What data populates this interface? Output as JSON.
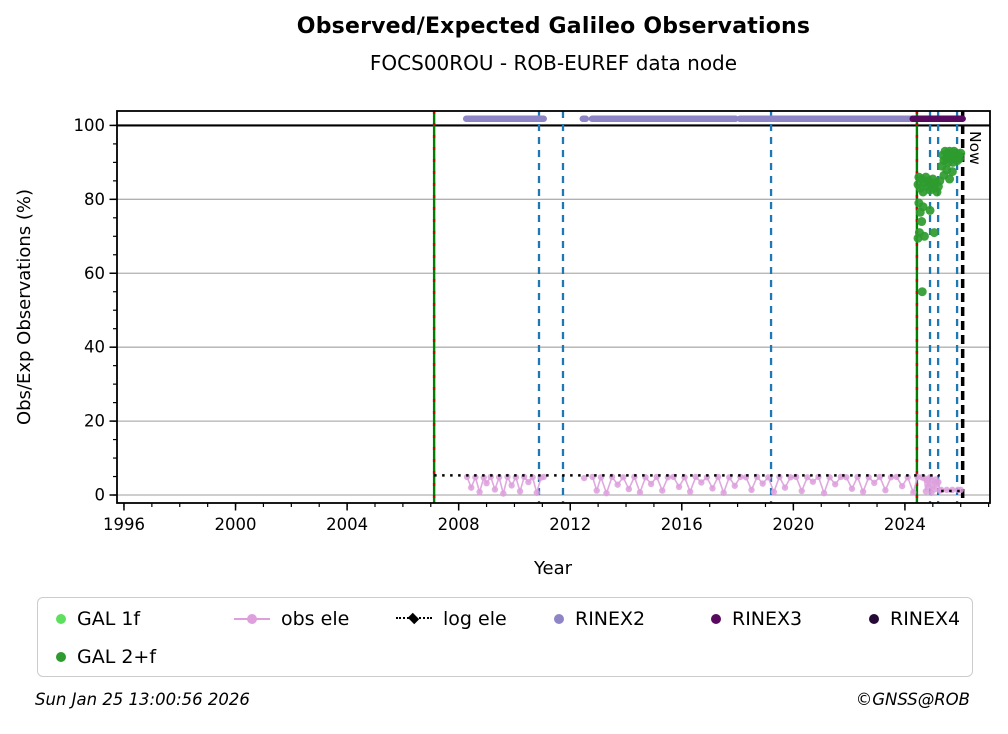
{
  "header": {
    "title": "Observed/Expected Galileo Observations",
    "subtitle": "FOCS00ROU - ROB-EUREF data node"
  },
  "footer": {
    "timestamp": "Sun Jan 25 13:00:56 2026",
    "copyright": "©GNSS@ROB"
  },
  "chart_data": {
    "type": "line",
    "title": "Observed/Expected Galileo Observations",
    "subtitle": "FOCS00ROU - ROB-EUREF data node",
    "xlabel": "Year",
    "ylabel": "Obs/Exp Observations (%)",
    "now_label": "Now",
    "xlim": [
      1995.75,
      2027.05
    ],
    "ylim": [
      -2.16,
      103.9
    ],
    "x_ticks": {
      "major": [
        1996,
        2000,
        2004,
        2008,
        2012,
        2016,
        2020,
        2024
      ],
      "minor_step": 1
    },
    "y_ticks": {
      "major": [
        0,
        20,
        40,
        60,
        80,
        100
      ],
      "minor_step": 5
    },
    "grid_y": [
      0,
      20,
      40,
      60,
      80
    ],
    "hline": 100,
    "now_line": 2026.07,
    "legend": {
      "gal1f": "GAL 1f",
      "gal2f": "GAL 2+f",
      "obs_ele": "obs ele",
      "log_ele": "log ele",
      "rinex2": "RINEX2",
      "rinex3": "RINEX3",
      "rinex4": "RINEX4"
    },
    "colors": {
      "gal1f": "#5ee05e",
      "gal2f": "#2e9b2e",
      "obs_ele": "#dda0dd",
      "log_ele": "#000000",
      "rinex2": "#8d85c5",
      "rinex3": "#570a5e",
      "rinex4": "#250a35",
      "event_blue": "#1f77b4",
      "event_green": "#008000",
      "event_red": "#cc0000",
      "now": "#000000",
      "grid": "#b0b0b0",
      "hline": "#000000"
    },
    "series": {
      "event_lines_green_red": [
        2007.12,
        2024.43
      ],
      "event_lines_blue": [
        2010.88,
        2011.74,
        2019.2,
        2024.9,
        2025.19,
        2025.87
      ],
      "rinex2": {
        "level": 101.8,
        "segments": [
          [
            2008.27,
            2011.05
          ],
          [
            2012.45,
            2012.56
          ],
          [
            2012.78,
            2017.93
          ],
          [
            2018.08,
            2024.28
          ]
        ]
      },
      "rinex3": {
        "level": 101.8,
        "segments": [
          [
            2024.28,
            2026.07
          ]
        ]
      },
      "rinex4": {
        "level": 101.8,
        "segments": []
      },
      "log_ele_segments": [
        [
          2007.12,
          2025.25,
          5.3
        ],
        [
          2025.3,
          2026.05,
          1.1
        ]
      ],
      "gal_1f_points": [],
      "gal_2f_points": [
        [
          2024.47,
          84
        ],
        [
          2024.47,
          69.5
        ],
        [
          2024.5,
          86
        ],
        [
          2024.5,
          79
        ],
        [
          2024.52,
          71
        ],
        [
          2024.55,
          83
        ],
        [
          2024.55,
          76.5
        ],
        [
          2024.6,
          85.5
        ],
        [
          2024.6,
          74
        ],
        [
          2024.62,
          55
        ],
        [
          2024.65,
          82
        ],
        [
          2024.65,
          78
        ],
        [
          2024.7,
          84.5
        ],
        [
          2024.7,
          70
        ],
        [
          2024.75,
          86
        ],
        [
          2024.8,
          83.5
        ],
        [
          2024.85,
          85
        ],
        [
          2024.9,
          82.5
        ],
        [
          2024.9,
          77
        ],
        [
          2024.95,
          84
        ],
        [
          2025.0,
          85.5
        ],
        [
          2025.05,
          83
        ],
        [
          2025.05,
          71
        ],
        [
          2025.1,
          84.5
        ],
        [
          2025.15,
          82
        ],
        [
          2025.2,
          83.5
        ],
        [
          2025.25,
          85
        ],
        [
          2025.32,
          89
        ],
        [
          2025.36,
          92
        ],
        [
          2025.4,
          90.5
        ],
        [
          2025.4,
          86.5
        ],
        [
          2025.44,
          93
        ],
        [
          2025.48,
          91
        ],
        [
          2025.5,
          88
        ],
        [
          2025.52,
          92.5
        ],
        [
          2025.56,
          90
        ],
        [
          2025.6,
          93
        ],
        [
          2025.6,
          85.5
        ],
        [
          2025.64,
          91.5
        ],
        [
          2025.68,
          92
        ],
        [
          2025.7,
          87.5
        ],
        [
          2025.72,
          90
        ],
        [
          2025.76,
          93
        ],
        [
          2025.8,
          91
        ],
        [
          2025.84,
          92.5
        ],
        [
          2025.88,
          90.5
        ],
        [
          2025.92,
          92
        ],
        [
          2025.96,
          91
        ],
        [
          2026.0,
          92.5
        ]
      ],
      "obs_ele_segments": [
        [
          [
            2008.3,
            4.9
          ],
          [
            2008.45,
            2.0
          ],
          [
            2008.6,
            4.8
          ],
          [
            2008.75,
            0.8
          ],
          [
            2008.9,
            4.7
          ],
          [
            2009.0,
            3.2
          ],
          [
            2009.15,
            4.9
          ],
          [
            2009.3,
            1.5
          ],
          [
            2009.45,
            4.8
          ],
          [
            2009.6,
            0.4
          ],
          [
            2009.75,
            4.9
          ],
          [
            2009.9,
            2.6
          ],
          [
            2010.05,
            4.8
          ],
          [
            2010.2,
            1.0
          ],
          [
            2010.35,
            4.9
          ],
          [
            2010.5,
            3.5
          ],
          [
            2010.65,
            4.8
          ],
          [
            2010.8,
            0.6
          ],
          [
            2010.95,
            4.7
          ],
          [
            2011.05,
            4.9
          ]
        ],
        [
          [
            2012.5,
            4.6
          ]
        ],
        [
          [
            2012.8,
            4.9
          ],
          [
            2012.95,
            1.2
          ],
          [
            2013.1,
            4.8
          ],
          [
            2013.3,
            0.5
          ],
          [
            2013.5,
            4.9
          ],
          [
            2013.7,
            2.8
          ],
          [
            2013.9,
            4.8
          ],
          [
            2014.1,
            1.6
          ],
          [
            2014.3,
            4.9
          ],
          [
            2014.5,
            0.7
          ],
          [
            2014.7,
            4.8
          ],
          [
            2014.9,
            3.0
          ],
          [
            2015.1,
            4.9
          ],
          [
            2015.3,
            1.2
          ],
          [
            2015.5,
            4.8
          ],
          [
            2015.7,
            4.9
          ],
          [
            2015.9,
            2.2
          ],
          [
            2016.1,
            4.8
          ],
          [
            2016.3,
            0.9
          ],
          [
            2016.5,
            4.9
          ],
          [
            2016.7,
            3.4
          ],
          [
            2016.9,
            4.8
          ],
          [
            2017.1,
            1.8
          ],
          [
            2017.3,
            4.9
          ],
          [
            2017.5,
            0.6
          ],
          [
            2017.7,
            4.8
          ],
          [
            2017.9,
            2.5
          ],
          [
            2018.1,
            4.9
          ],
          [
            2018.3,
            4.8
          ],
          [
            2018.5,
            1.4
          ],
          [
            2018.7,
            4.9
          ],
          [
            2018.9,
            3.1
          ],
          [
            2019.1,
            4.8
          ],
          [
            2019.3,
            0.8
          ],
          [
            2019.5,
            4.9
          ],
          [
            2019.7,
            2.0
          ],
          [
            2019.9,
            4.8
          ],
          [
            2020.1,
            4.9
          ],
          [
            2020.3,
            1.1
          ],
          [
            2020.5,
            4.8
          ],
          [
            2020.7,
            3.6
          ],
          [
            2020.9,
            4.9
          ],
          [
            2021.1,
            0.5
          ],
          [
            2021.3,
            4.8
          ],
          [
            2021.5,
            2.9
          ],
          [
            2021.7,
            4.9
          ],
          [
            2021.9,
            4.8
          ],
          [
            2022.1,
            1.7
          ],
          [
            2022.3,
            4.9
          ],
          [
            2022.5,
            0.9
          ],
          [
            2022.7,
            4.8
          ],
          [
            2022.9,
            3.3
          ],
          [
            2023.1,
            4.9
          ],
          [
            2023.3,
            1.3
          ],
          [
            2023.5,
            4.8
          ],
          [
            2023.7,
            4.9
          ],
          [
            2023.9,
            2.4
          ],
          [
            2024.1,
            4.8
          ],
          [
            2024.3,
            0.7
          ],
          [
            2024.45,
            4.9
          ],
          [
            2024.6,
            4.8
          ],
          [
            2024.7,
            4.5
          ],
          [
            2024.75,
            1.0
          ],
          [
            2024.8,
            4.0
          ],
          [
            2024.85,
            2.2
          ],
          [
            2024.9,
            4.8
          ],
          [
            2024.95,
            0.6
          ],
          [
            2025.0,
            3.8
          ],
          [
            2025.05,
            1.5
          ],
          [
            2025.1,
            4.2
          ],
          [
            2025.15,
            2.8
          ],
          [
            2025.2,
            3.5
          ],
          [
            2025.25,
            1.2
          ],
          [
            2025.3,
            1.4
          ],
          [
            2025.5,
            1.4
          ],
          [
            2025.7,
            1.4
          ],
          [
            2025.9,
            1.4
          ],
          [
            2026.0,
            1.4
          ]
        ]
      ]
    }
  }
}
